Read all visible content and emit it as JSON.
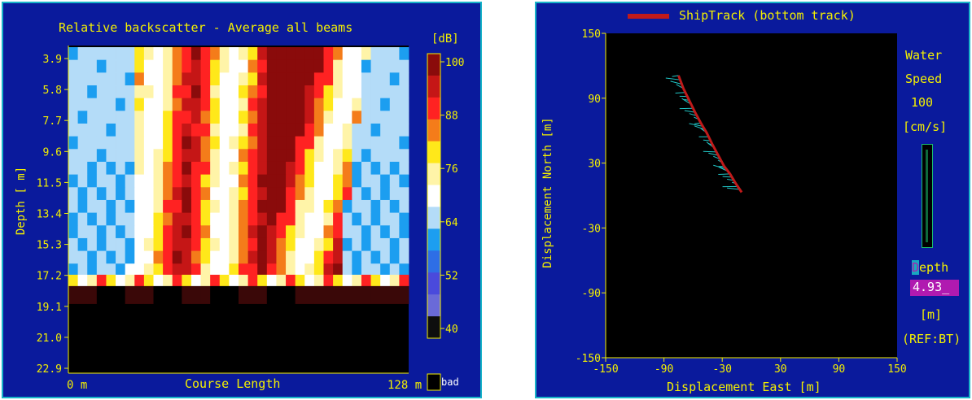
{
  "left": {
    "title": "Relative backscatter - Average all beams",
    "unit": "[dB]",
    "ylabel": "Depth [ m]",
    "xlabel": "Course Length",
    "x_start": "0 m",
    "x_end": "128 m",
    "depth_ticks": [
      "3.9",
      "5.8",
      "7.7",
      "9.6",
      "11.5",
      "13.4",
      "15.3",
      "17.2",
      "19.1",
      "21.0",
      "22.9"
    ],
    "scale_ticks": [
      "100",
      "88",
      "76",
      "64",
      "52",
      "40"
    ],
    "bad_label": "bad",
    "colors": {
      "background": "#0a1a9c",
      "text": "#f4f000",
      "scale": [
        "#8a0b0b",
        "#c51616",
        "#ff2222",
        "#f47c1a",
        "#ffe81a",
        "#fff4a8",
        "#ffffff",
        "#b4dcf8",
        "#1c9ef0",
        "#2e6ee6",
        "#4a4adc",
        "#6a6ad8",
        "#0e0e0e"
      ]
    }
  },
  "right": {
    "legend_label": "ShipTrack (bottom track)",
    "ylabel": "Displacement North [m]",
    "xlabel": "Displacement East [m]",
    "water_speed": {
      "line1": "Water",
      "line2": "Speed",
      "value": "100",
      "unit": "[cm/s]"
    },
    "depth": {
      "label_first": "D",
      "label_rest": "epth",
      "value": "4.93_",
      "unit": "[m]",
      "ref": "(REF:BT)"
    },
    "colors": {
      "track": "#c01a1a",
      "vectors": "#20c8c8",
      "plot_bg": "#000000",
      "value_bg": "#b01ab0"
    }
  },
  "chart_data": {
    "type": "line",
    "title": "",
    "xlabel": "Displacement East [m]",
    "ylabel": "Displacement North [m]",
    "xlim": [
      -150,
      150
    ],
    "ylim": [
      -150,
      150
    ],
    "xticks": [
      -150,
      -90,
      -30,
      30,
      90,
      150
    ],
    "yticks": [
      150,
      90,
      30,
      -30,
      -90,
      -150
    ],
    "series": [
      {
        "name": "ShipTrack (bottom track)",
        "x": [
          -75,
          -70,
          -64,
          -58,
          -52,
          -46,
          -40,
          -34,
          -28,
          -22,
          -16,
          -10
        ],
        "y": [
          111,
          99,
          88,
          77,
          67,
          58,
          47,
          37,
          27,
          20,
          11,
          3
        ]
      }
    ]
  }
}
